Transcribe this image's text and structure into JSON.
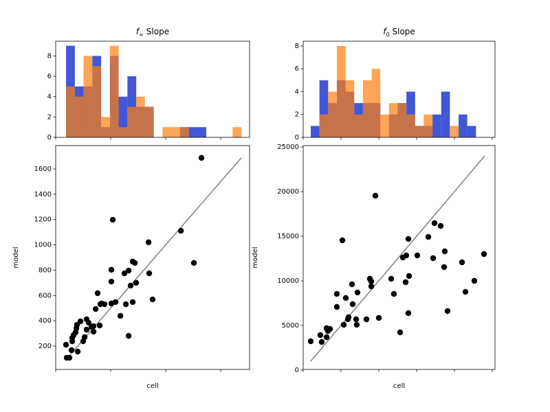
{
  "chart_data": [
    {
      "type": "histogram",
      "title_symbol": "f",
      "title_subscript": "∞",
      "title_text": "Slope",
      "bins": [
        94,
        174,
        253,
        333,
        413,
        493,
        572,
        652,
        732,
        811,
        891,
        971,
        1050,
        1130,
        1210,
        1290,
        1369,
        1449,
        1529,
        1608,
        1688
      ],
      "series": [
        {
          "color": "#4157d6",
          "alpha": 1,
          "values": [
            9,
            5,
            5,
            8,
            1,
            8,
            4,
            6,
            3,
            3,
            0,
            0,
            0,
            1,
            1,
            1,
            0,
            0,
            0,
            0
          ]
        },
        {
          "color": "#ff7f0e",
          "alpha": 0.7,
          "values": [
            5,
            4,
            8,
            7,
            2,
            9,
            1,
            3,
            4,
            3,
            0,
            1,
            1,
            1,
            0,
            0,
            0,
            0,
            0,
            1
          ]
        }
      ],
      "xlim": [
        0,
        1762
      ],
      "xticks": [
        0,
        500,
        1000,
        1500
      ],
      "show_xtick_labels": false,
      "ylim": [
        0,
        9.45
      ],
      "yticks": [
        0,
        2,
        4,
        6,
        8
      ]
    },
    {
      "type": "scatter",
      "x_label": "cell",
      "y_label": "model",
      "color": "#000000",
      "x": [
        94,
        100,
        125,
        144,
        150,
        150,
        163,
        181,
        188,
        200,
        194,
        225,
        250,
        263,
        281,
        281,
        300,
        325,
        344,
        344,
        363,
        381,
        400,
        406,
        419,
        444,
        506,
        506,
        506,
        519,
        544,
        588,
        625,
        638,
        663,
        663,
        681,
        700,
        700,
        719,
        731,
        844,
        850,
        881,
        1138,
        1256,
        1325
      ],
      "y": [
        211,
        108,
        108,
        168,
        238,
        265,
        287,
        309,
        341,
        157,
        368,
        396,
        238,
        271,
        412,
        330,
        385,
        352,
        314,
        358,
        493,
        618,
        363,
        531,
        537,
        531,
        537,
        803,
        710,
        1198,
        548,
        439,
        775,
        531,
        281,
        797,
        678,
        548,
        868,
        857,
        700,
        1020,
        775,
        569,
        1111,
        857,
        1687
      ],
      "reference_line": {
        "color": "#808080",
        "x": [
          94,
          1688
        ],
        "y": [
          94,
          1688
        ]
      },
      "xlim": [
        0,
        1762
      ],
      "xticks": [
        0,
        500,
        1000,
        1500
      ],
      "show_xtick_labels": false,
      "ylim": [
        16,
        1784
      ],
      "yticks": [
        200,
        400,
        600,
        800,
        1000,
        1200,
        1400,
        1600
      ]
    },
    {
      "type": "histogram",
      "title_symbol": "f",
      "title_subscript": "0",
      "title_text": "Slope",
      "bins": [
        1000,
        2150,
        3300,
        4450,
        5600,
        6750,
        7900,
        9050,
        10200,
        11350,
        12500,
        13650,
        14800,
        15950,
        17100,
        18250,
        19400,
        20550,
        21700,
        22850,
        24000
      ],
      "series": [
        {
          "color": "#4157d6",
          "alpha": 1,
          "values": [
            1,
            5,
            3,
            5,
            4,
            3,
            3,
            3,
            0,
            2,
            3,
            4,
            1,
            1,
            2,
            4,
            0,
            2,
            1,
            0
          ]
        },
        {
          "color": "#ff7f0e",
          "alpha": 0.7,
          "values": [
            0,
            2,
            4,
            8,
            5,
            2,
            5,
            6,
            2,
            3,
            3,
            2,
            1,
            2,
            0,
            0,
            1,
            0,
            0,
            0
          ]
        }
      ],
      "xlim": [
        0,
        25364
      ],
      "xticks": [
        0,
        5000,
        10000,
        15000,
        20000,
        25000
      ],
      "show_xtick_labels": false,
      "ylim": [
        0,
        8.42
      ],
      "yticks": [
        0,
        2,
        4,
        6,
        8
      ]
    },
    {
      "type": "scatter",
      "x_label": "cell",
      "y_label": "model",
      "color": "#000000",
      "x": [
        1000,
        2273,
        2455,
        3091,
        3091,
        3273,
        3545,
        4455,
        4455,
        5182,
        5364,
        5636,
        5909,
        6000,
        6455,
        6545,
        7000,
        7091,
        7182,
        8364,
        8818,
        9000,
        9000,
        9545,
        10000,
        11636,
        12000,
        12818,
        13182,
        13545,
        13636,
        13909,
        13909,
        14000,
        15091,
        16545,
        17182,
        17364,
        18182,
        18636,
        18727,
        19091,
        21000,
        21455,
        22636,
        23909
      ],
      "y": [
        3231,
        3923,
        3154,
        4692,
        3692,
        4385,
        4615,
        7077,
        8538,
        14538,
        5077,
        8077,
        5692,
        5923,
        9615,
        7385,
        5692,
        5077,
        8692,
        5692,
        10231,
        9923,
        9385,
        19538,
        5846,
        10231,
        8538,
        4231,
        12615,
        9846,
        12846,
        14692,
        6385,
        10538,
        12846,
        14923,
        12538,
        16462,
        16154,
        11538,
        13308,
        6615,
        12077,
        8769,
        10000,
        13000
      ],
      "reference_line": {
        "color": "#808080",
        "x": [
          1000,
          24000
        ],
        "y": [
          1000,
          24000
        ]
      },
      "xlim": [
        0,
        25364
      ],
      "xticks": [
        0,
        5000,
        10000,
        15000,
        20000,
        25000
      ],
      "show_xtick_labels": false,
      "ylim": [
        77,
        25154
      ],
      "yticks": [
        0,
        5000,
        10000,
        15000,
        20000,
        25000
      ]
    }
  ]
}
